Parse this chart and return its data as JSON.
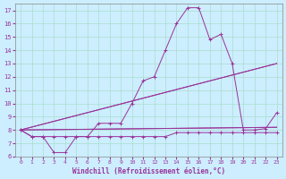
{
  "xlabel": "Windchill (Refroidissement éolien,°C)",
  "background_color": "#cceeff",
  "grid_color": "#aaddcc",
  "line_color": "#993399",
  "xlim": [
    -0.5,
    23.5
  ],
  "ylim": [
    6,
    17.5
  ],
  "yticks": [
    6,
    7,
    8,
    9,
    10,
    11,
    12,
    13,
    14,
    15,
    16,
    17
  ],
  "xticks": [
    0,
    1,
    2,
    3,
    4,
    5,
    6,
    7,
    8,
    9,
    10,
    11,
    12,
    13,
    14,
    15,
    16,
    17,
    18,
    19,
    20,
    21,
    22,
    23
  ],
  "series": [
    {
      "x": [
        0,
        1,
        2,
        3,
        4,
        5,
        6,
        7,
        8,
        9,
        10,
        11,
        12,
        13,
        14,
        15,
        16,
        17,
        18,
        19,
        20,
        21,
        22,
        23
      ],
      "y": [
        8,
        7.5,
        7.5,
        7.5,
        7.5,
        7.5,
        7.5,
        7.5,
        7.5,
        7.5,
        7.5,
        7.5,
        7.5,
        7.5,
        7.8,
        7.8,
        7.8,
        7.8,
        7.8,
        7.8,
        7.8,
        7.8,
        7.8,
        7.8
      ]
    },
    {
      "x": [
        0,
        1,
        2,
        3,
        4,
        5,
        6,
        7,
        8,
        9,
        10,
        11,
        12,
        13,
        14,
        15,
        16,
        17,
        18,
        19,
        20,
        21,
        22,
        23
      ],
      "y": [
        8,
        7.5,
        7.5,
        6.3,
        6.3,
        7.5,
        7.5,
        8.5,
        8.5,
        8.5,
        10,
        11.7,
        12,
        14,
        16,
        17.2,
        17.2,
        14.8,
        15.2,
        13,
        8,
        8,
        8.1,
        9.3
      ]
    },
    {
      "x": [
        0,
        23
      ],
      "y": [
        8,
        8.2
      ]
    },
    {
      "x": [
        0,
        23
      ],
      "y": [
        8,
        13
      ]
    }
  ]
}
